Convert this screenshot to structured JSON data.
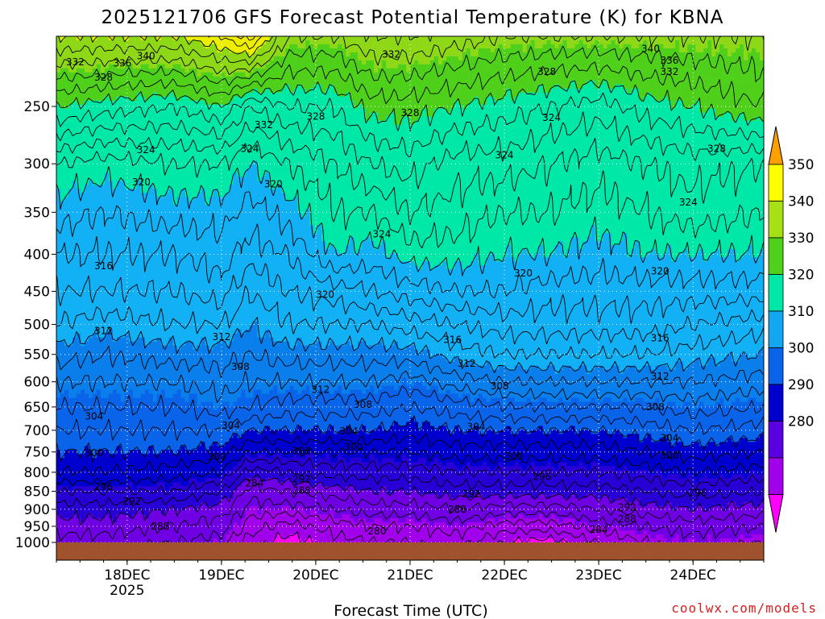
{
  "chart_data": {
    "type": "contour",
    "title": "2025121706 GFS Forecast Potential Temperature (K) for KBNA",
    "xlabel": "Forecast Time (UTC)",
    "ylabel": "",
    "x_ticks": [
      {
        "day": 18,
        "label": "18DEC",
        "sub": "2025"
      },
      {
        "day": 19,
        "label": "19DEC",
        "sub": ""
      },
      {
        "day": 20,
        "label": "20DEC",
        "sub": ""
      },
      {
        "day": 21,
        "label": "21DEC",
        "sub": ""
      },
      {
        "day": 22,
        "label": "22DEC",
        "sub": ""
      },
      {
        "day": 23,
        "label": "23DEC",
        "sub": ""
      },
      {
        "day": 24,
        "label": "24DEC",
        "sub": ""
      }
    ],
    "xlim_days": [
      17.25,
      24.75
    ],
    "y_pressure_ticks": [
      250,
      300,
      350,
      400,
      450,
      500,
      550,
      600,
      650,
      700,
      750,
      800,
      850,
      900,
      950,
      1000
    ],
    "y_scale": "log-pressure",
    "ylim_hpa": [
      200,
      1000
    ],
    "grid": true,
    "colorbar": {
      "labels": [
        280,
        290,
        300,
        310,
        320,
        330,
        340,
        350
      ],
      "colors": [
        "#ff00ff",
        "#a000ea",
        "#5a00e0",
        "#0000ce",
        "#0a64ea",
        "#12a7f0",
        "#00e8a8",
        "#4fd01a",
        "#a8e018",
        "#ffff00",
        "#ffa000"
      ]
    },
    "theta_fill_bands": [
      {
        "min": 200,
        "max": 280,
        "color": "#ff00ff"
      },
      {
        "min": 280,
        "max": 285,
        "color": "#a000ea"
      },
      {
        "min": 285,
        "max": 290,
        "color": "#7000e4"
      },
      {
        "min": 290,
        "max": 295,
        "color": "#2800d6"
      },
      {
        "min": 295,
        "max": 300,
        "color": "#0000ce"
      },
      {
        "min": 300,
        "max": 305,
        "color": "#0a64ea"
      },
      {
        "min": 305,
        "max": 310,
        "color": "#0a7eea"
      },
      {
        "min": 310,
        "max": 315,
        "color": "#12b0f4"
      },
      {
        "min": 315,
        "max": 320,
        "color": "#12b0f4"
      },
      {
        "min": 320,
        "max": 325,
        "color": "#00e8a8"
      },
      {
        "min": 325,
        "max": 330,
        "color": "#00e8a8"
      },
      {
        "min": 330,
        "max": 335,
        "color": "#4fd01a"
      },
      {
        "min": 335,
        "max": 340,
        "color": "#8fd818"
      },
      {
        "min": 340,
        "max": 345,
        "color": "#eeee00"
      },
      {
        "min": 345,
        "max": 350,
        "color": "#ffe000"
      },
      {
        "min": 350,
        "max": 400,
        "color": "#ffa000"
      }
    ],
    "theta_profiles": [
      {
        "day": 17.25,
        "p": [
          1000,
          950,
          900,
          850,
          800,
          750,
          700,
          650,
          600,
          550,
          500,
          450,
          400,
          350,
          300,
          250,
          200
        ],
        "theta": [
          287,
          289,
          291,
          294,
          298,
          300,
          302,
          304,
          306,
          309,
          312,
          314,
          316,
          319,
          322,
          330,
          340
        ]
      },
      {
        "day": 17.75,
        "p": [
          1000,
          950,
          900,
          850,
          800,
          750,
          700,
          650,
          600,
          550,
          500,
          450,
          400,
          350,
          300,
          250,
          200
        ],
        "theta": [
          287,
          289,
          291,
          294,
          298,
          300,
          302,
          304,
          306,
          308,
          311,
          314,
          316,
          318,
          321,
          329,
          340
        ]
      },
      {
        "day": 18.5,
        "p": [
          1000,
          950,
          900,
          850,
          800,
          750,
          700,
          650,
          600,
          550,
          500,
          450,
          400,
          350,
          300,
          250,
          200
        ],
        "theta": [
          286,
          288,
          290,
          294,
          297,
          300,
          302,
          304,
          306,
          309,
          312,
          314,
          316,
          319,
          322,
          328,
          340
        ]
      },
      {
        "day": 19.0,
        "p": [
          1000,
          950,
          900,
          850,
          800,
          750,
          700,
          650,
          600,
          550,
          500,
          450,
          400,
          350,
          300,
          250,
          200
        ],
        "theta": [
          285,
          287,
          289,
          292,
          296,
          299,
          302,
          305,
          307,
          309,
          312,
          315,
          317,
          319,
          322,
          330,
          342
        ]
      },
      {
        "day": 19.3,
        "p": [
          1000,
          950,
          900,
          850,
          800,
          750,
          700,
          650,
          600,
          550,
          500,
          450,
          400,
          350,
          300,
          250,
          200
        ],
        "theta": [
          281,
          283,
          285,
          287,
          291,
          296,
          300,
          304,
          306,
          308,
          310,
          312,
          315,
          317,
          320,
          326,
          345
        ]
      },
      {
        "day": 19.7,
        "p": [
          1000,
          950,
          900,
          850,
          800,
          750,
          700,
          650,
          600,
          550,
          500,
          450,
          400,
          350,
          300,
          250,
          200
        ],
        "theta": [
          279,
          281,
          285,
          288,
          292,
          296,
          300,
          303,
          306,
          309,
          312,
          314,
          316,
          319,
          322,
          328,
          336
        ]
      },
      {
        "day": 20.2,
        "p": [
          1000,
          950,
          900,
          850,
          800,
          750,
          700,
          650,
          600,
          550,
          500,
          450,
          400,
          350,
          300,
          250,
          200
        ],
        "theta": [
          281,
          283,
          286,
          289,
          293,
          296,
          300,
          303,
          306,
          309,
          312,
          315,
          320,
          322,
          324,
          328,
          336
        ]
      },
      {
        "day": 20.6,
        "p": [
          1000,
          950,
          900,
          850,
          800,
          750,
          700,
          650,
          600,
          550,
          500,
          450,
          400,
          350,
          300,
          250,
          200
        ],
        "theta": [
          282,
          284,
          287,
          290,
          293,
          296,
          300,
          303,
          306,
          309,
          312,
          316,
          319,
          322,
          326,
          331,
          338
        ]
      },
      {
        "day": 21.0,
        "p": [
          1000,
          950,
          900,
          850,
          800,
          750,
          700,
          650,
          600,
          550,
          500,
          450,
          400,
          350,
          300,
          250,
          200
        ],
        "theta": [
          282,
          284,
          287,
          290,
          293,
          296,
          299,
          302,
          305,
          309,
          313,
          317,
          321,
          324,
          327,
          331,
          338
        ]
      },
      {
        "day": 21.5,
        "p": [
          1000,
          950,
          900,
          850,
          800,
          750,
          700,
          650,
          600,
          550,
          500,
          450,
          400,
          350,
          300,
          250,
          200
        ],
        "theta": [
          283,
          285,
          288,
          291,
          294,
          297,
          300,
          303,
          307,
          311,
          314,
          318,
          321,
          323,
          325,
          330,
          337
        ]
      },
      {
        "day": 22.0,
        "p": [
          1000,
          950,
          900,
          850,
          800,
          750,
          700,
          650,
          600,
          550,
          500,
          450,
          400,
          350,
          300,
          250,
          200
        ],
        "theta": [
          280,
          283,
          287,
          291,
          294,
          297,
          300,
          304,
          308,
          312,
          315,
          318,
          320,
          322,
          325,
          329,
          336
        ]
      },
      {
        "day": 22.5,
        "p": [
          1000,
          950,
          900,
          850,
          800,
          750,
          700,
          650,
          600,
          550,
          500,
          450,
          400,
          350,
          300,
          250,
          200
        ],
        "theta": [
          279,
          283,
          287,
          291,
          294,
          297,
          300,
          304,
          308,
          312,
          315,
          317,
          320,
          322,
          324,
          328,
          336
        ]
      },
      {
        "day": 23.0,
        "p": [
          1000,
          950,
          900,
          850,
          800,
          750,
          700,
          650,
          600,
          550,
          500,
          450,
          400,
          350,
          300,
          250,
          200
        ],
        "theta": [
          282,
          285,
          288,
          291,
          294,
          297,
          300,
          304,
          308,
          312,
          315,
          317,
          319,
          321,
          323,
          327,
          336
        ]
      },
      {
        "day": 23.5,
        "p": [
          1000,
          950,
          900,
          850,
          800,
          750,
          700,
          650,
          600,
          550,
          500,
          450,
          400,
          350,
          300,
          250,
          200
        ],
        "theta": [
          284,
          286,
          289,
          292,
          295,
          298,
          301,
          304,
          308,
          312,
          315,
          317,
          320,
          322,
          324,
          329,
          336
        ]
      },
      {
        "day": 24.0,
        "p": [
          1000,
          950,
          900,
          850,
          800,
          750,
          700,
          650,
          600,
          550,
          500,
          450,
          400,
          350,
          300,
          250,
          200
        ],
        "theta": [
          285,
          287,
          290,
          293,
          296,
          299,
          302,
          305,
          308,
          311,
          314,
          317,
          320,
          323,
          325,
          330,
          336
        ]
      },
      {
        "day": 24.75,
        "p": [
          1000,
          950,
          900,
          850,
          800,
          750,
          700,
          650,
          600,
          550,
          500,
          450,
          400,
          350,
          300,
          250,
          200
        ],
        "theta": [
          284,
          286,
          289,
          292,
          295,
          298,
          301,
          304,
          307,
          310,
          313,
          317,
          320,
          322,
          324,
          332,
          336
        ]
      }
    ],
    "contour_interval_k": 2,
    "contour_labels": [
      {
        "v": "332",
        "day": 17.45,
        "p": 217
      },
      {
        "v": "336",
        "day": 17.95,
        "p": 218
      },
      {
        "v": "340",
        "day": 18.2,
        "p": 213
      },
      {
        "v": "328",
        "day": 17.75,
        "p": 228
      },
      {
        "v": "332",
        "day": 19.45,
        "p": 265
      },
      {
        "v": "332",
        "day": 20.8,
        "p": 212
      },
      {
        "v": "328",
        "day": 20.0,
        "p": 258
      },
      {
        "v": "328",
        "day": 21.0,
        "p": 255
      },
      {
        "v": "328",
        "day": 22.45,
        "p": 224
      },
      {
        "v": "340",
        "day": 23.55,
        "p": 208
      },
      {
        "v": "336",
        "day": 23.75,
        "p": 216
      },
      {
        "v": "332",
        "day": 23.75,
        "p": 224
      },
      {
        "v": "328",
        "day": 24.25,
        "p": 286
      },
      {
        "v": "324",
        "day": 18.2,
        "p": 287
      },
      {
        "v": "324",
        "day": 19.3,
        "p": 286
      },
      {
        "v": "324",
        "day": 22.5,
        "p": 259
      },
      {
        "v": "324",
        "day": 22.0,
        "p": 292
      },
      {
        "v": "324",
        "day": 23.95,
        "p": 339
      },
      {
        "v": "324",
        "day": 20.7,
        "p": 375
      },
      {
        "v": "320",
        "day": 18.15,
        "p": 318
      },
      {
        "v": "320",
        "day": 19.55,
        "p": 320
      },
      {
        "v": "320",
        "day": 22.2,
        "p": 425
      },
      {
        "v": "320",
        "day": 20.1,
        "p": 455
      },
      {
        "v": "320",
        "day": 23.65,
        "p": 422
      },
      {
        "v": "316",
        "day": 17.75,
        "p": 415
      },
      {
        "v": "316",
        "day": 21.45,
        "p": 525
      },
      {
        "v": "316",
        "day": 23.65,
        "p": 522
      },
      {
        "v": "312",
        "day": 17.75,
        "p": 510
      },
      {
        "v": "312",
        "day": 19.0,
        "p": 520
      },
      {
        "v": "312",
        "day": 20.05,
        "p": 615
      },
      {
        "v": "312",
        "day": 21.6,
        "p": 566
      },
      {
        "v": "312",
        "day": 23.65,
        "p": 590
      },
      {
        "v": "308",
        "day": 19.2,
        "p": 572
      },
      {
        "v": "308",
        "day": 20.5,
        "p": 645
      },
      {
        "v": "308",
        "day": 21.95,
        "p": 608
      },
      {
        "v": "308",
        "day": 23.6,
        "p": 650
      },
      {
        "v": "304",
        "day": 17.65,
        "p": 670
      },
      {
        "v": "304",
        "day": 19.1,
        "p": 690
      },
      {
        "v": "304",
        "day": 20.35,
        "p": 702
      },
      {
        "v": "304",
        "day": 21.7,
        "p": 692
      },
      {
        "v": "304",
        "day": 23.75,
        "p": 718
      },
      {
        "v": "300",
        "day": 17.65,
        "p": 752
      },
      {
        "v": "300",
        "day": 18.95,
        "p": 762
      },
      {
        "v": "300",
        "day": 20.4,
        "p": 738
      },
      {
        "v": "300",
        "day": 22.1,
        "p": 760
      },
      {
        "v": "300",
        "day": 23.75,
        "p": 758
      },
      {
        "v": "296",
        "day": 19.85,
        "p": 748
      },
      {
        "v": "296",
        "day": 22.4,
        "p": 812
      },
      {
        "v": "296",
        "day": 24.05,
        "p": 854
      },
      {
        "v": "296",
        "day": 17.75,
        "p": 838
      },
      {
        "v": "292",
        "day": 19.85,
        "p": 818
      },
      {
        "v": "292",
        "day": 21.65,
        "p": 857
      },
      {
        "v": "292",
        "day": 23.3,
        "p": 895
      },
      {
        "v": "292",
        "day": 18.05,
        "p": 878
      },
      {
        "v": "288",
        "day": 18.35,
        "p": 950
      },
      {
        "v": "288",
        "day": 19.85,
        "p": 848
      },
      {
        "v": "288",
        "day": 21.5,
        "p": 900
      },
      {
        "v": "288",
        "day": 23.3,
        "p": 928
      },
      {
        "v": "284",
        "day": 19.35,
        "p": 828
      },
      {
        "v": "284",
        "day": 23.0,
        "p": 960
      },
      {
        "v": "280",
        "day": 20.65,
        "p": 965
      }
    ],
    "ground_p_hpa": 1000
  },
  "watermark": "coolwx.com/models"
}
